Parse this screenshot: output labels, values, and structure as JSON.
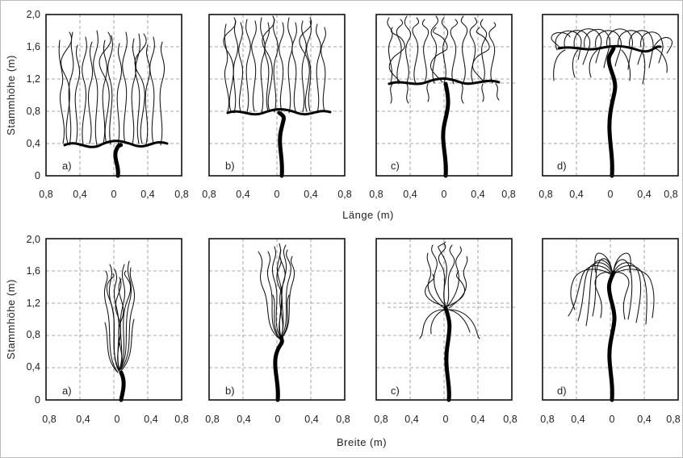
{
  "figure": {
    "rows": [
      {
        "id": "laenge",
        "y_axis_label": "Stammhöhe (m)",
        "x_axis_label": "Länge (m)",
        "y_ticks": [
          "2,0",
          "1,6",
          "1,2",
          "0,8",
          "0,4",
          "0"
        ],
        "x_ticks": [
          "0,8",
          "0,4",
          "0",
          "0,4",
          "0,8"
        ],
        "panels": [
          {
            "letter": "a)",
            "form": "spread",
            "crown_height_m": 0.4
          },
          {
            "letter": "b)",
            "form": "spread",
            "crown_height_m": 0.8
          },
          {
            "letter": "c)",
            "form": "spread",
            "crown_height_m": 1.2
          },
          {
            "letter": "d)",
            "form": "spread-weeping",
            "crown_height_m": 1.6
          }
        ]
      },
      {
        "id": "breite",
        "y_axis_label": "Stammhöhe (m)",
        "x_axis_label": "Breite (m)",
        "y_ticks": [
          "2,0",
          "1,6",
          "1,2",
          "0,8",
          "0,4",
          "0"
        ],
        "x_ticks": [
          "0,8",
          "0,4",
          "0",
          "0,4",
          "0,8"
        ],
        "panels": [
          {
            "letter": "a)",
            "form": "narrow",
            "crown_height_m": 0.4
          },
          {
            "letter": "b)",
            "form": "narrow",
            "crown_height_m": 0.8
          },
          {
            "letter": "c)",
            "form": "weeping",
            "crown_height_m": 1.2
          },
          {
            "letter": "d)",
            "form": "weeping",
            "crown_height_m": 1.6
          }
        ]
      }
    ]
  }
}
